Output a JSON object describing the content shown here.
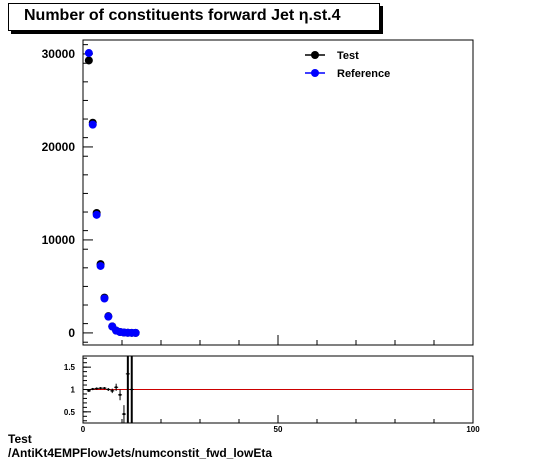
{
  "title": "Number of constituents forward Jet  η.st.4",
  "footer": {
    "line1": "Test",
    "line2": "/AntiKt4EMPFlowJets/numconstit_fwd_lowEta"
  },
  "legend": {
    "placement": "top-right",
    "entries": [
      {
        "label": "Test",
        "color": "#000000"
      },
      {
        "label": "Reference",
        "color": "#0000ff"
      }
    ]
  },
  "chart_data": [
    {
      "type": "scatter",
      "panel": "main",
      "xlim": [
        0,
        100
      ],
      "ylim": [
        -1300,
        31500
      ],
      "yticks": [
        0,
        10000,
        20000,
        30000
      ],
      "series": [
        {
          "name": "Test",
          "color": "#000000",
          "x": [
            1.5,
            2.5,
            3.5,
            4.5,
            5.5,
            6.5,
            7.5,
            8.5,
            9.5,
            10.5,
            11.5,
            12.5,
            13.5
          ],
          "y": [
            29300,
            22600,
            12900,
            7400,
            3800,
            1800,
            700,
            250,
            100,
            40,
            15,
            6,
            3
          ]
        },
        {
          "name": "Reference",
          "color": "#0000ff",
          "x": [
            1.5,
            2.5,
            3.5,
            4.5,
            5.5,
            6.5,
            7.5,
            8.5,
            9.5,
            10.5,
            11.5,
            12.5,
            13.5
          ],
          "y": [
            30100,
            22400,
            12700,
            7200,
            3700,
            1750,
            690,
            245,
            98,
            39,
            14,
            6,
            3
          ]
        }
      ]
    },
    {
      "type": "scatter",
      "panel": "ratio",
      "xlim": [
        0,
        100
      ],
      "ylim": [
        0.25,
        1.75
      ],
      "yticks": [
        0.5,
        1,
        1.5
      ],
      "yticklabels": [
        "0.5",
        "1",
        "1.5"
      ],
      "xticks": [
        0,
        50,
        100
      ],
      "reference_line": 1,
      "points": {
        "x": [
          1.5,
          2.5,
          3.5,
          4.5,
          5.5,
          6.5,
          7.5,
          8.5,
          9.5,
          10.5,
          11.5,
          12.5
        ],
        "y": [
          0.97,
          1.01,
          1.02,
          1.03,
          1.03,
          1.0,
          0.97,
          1.05,
          0.88,
          0.45,
          1.35,
          1.0
        ],
        "err": [
          0.005,
          0.008,
          0.01,
          0.012,
          0.02,
          0.03,
          0.05,
          0.08,
          0.12,
          0.2,
          3.0,
          3.0
        ]
      }
    }
  ]
}
